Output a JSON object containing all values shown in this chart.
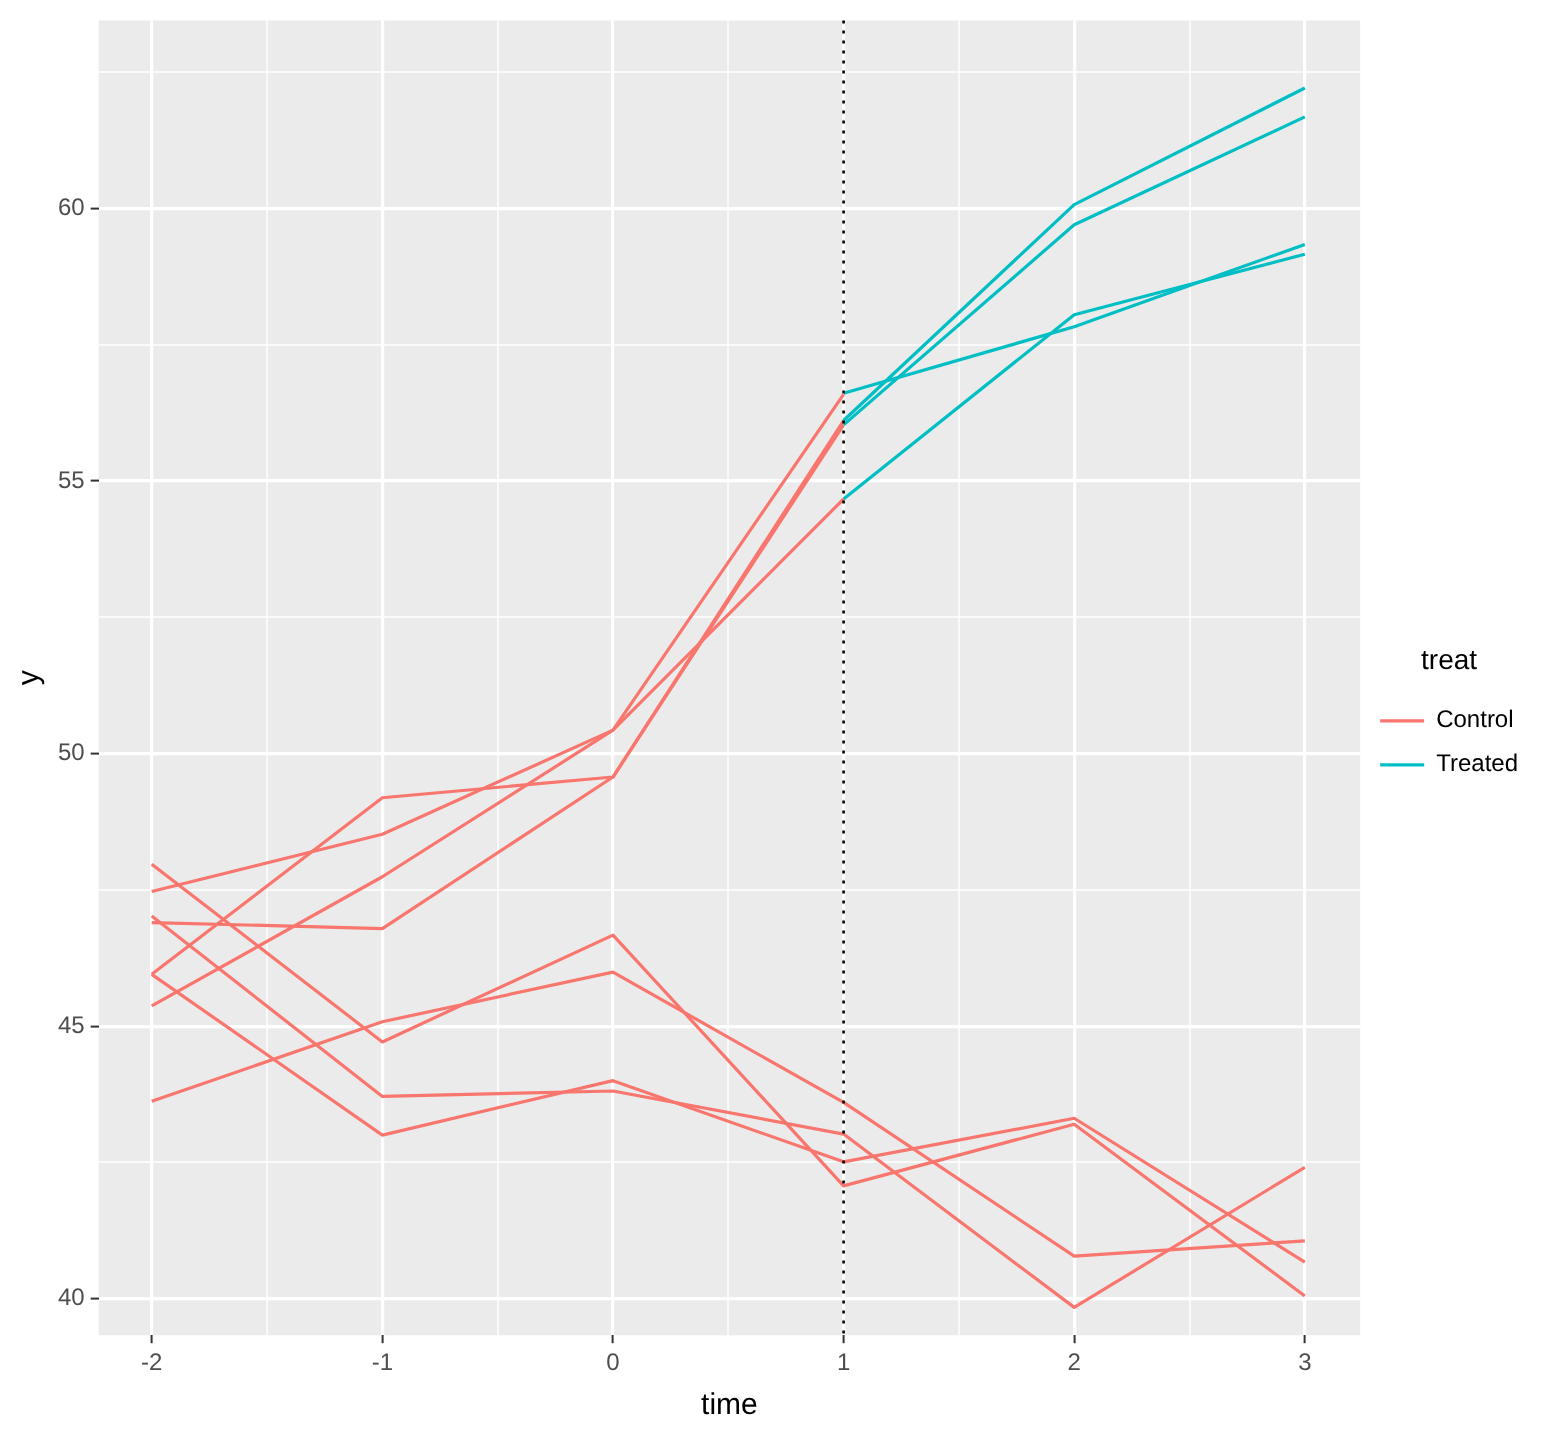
{
  "chart_data": {
    "type": "line",
    "xlabel": "time",
    "ylabel": "y",
    "legend_title": "treat",
    "legend": "right",
    "grid": true,
    "marker": "none",
    "line_style": "solid",
    "xlim": [
      -2.23,
      3.24
    ],
    "xticks": [
      -2,
      {
        "value": -1.5,
        "label": null
      },
      -1,
      {
        "value": -0.5,
        "label": null
      },
      0,
      {
        "value": 0.5,
        "label": null
      },
      1,
      {
        "value": 1.5,
        "label": null
      },
      2,
      {
        "value": 2.5,
        "label": null
      },
      3
    ],
    "ylim": [
      39.33,
      63.45
    ],
    "yticks": [
      40,
      {
        "value": 42.5,
        "label": null
      },
      45,
      {
        "value": 47.5,
        "label": null
      },
      50,
      {
        "value": 52.5,
        "label": null
      },
      55,
      {
        "value": 57.5,
        "label": null
      },
      60,
      {
        "value": 62.5,
        "label": null
      }
    ],
    "ref_lines": [
      {
        "axis": "x",
        "value": 1,
        "color": "#000000",
        "line_style": "dotted"
      }
    ],
    "series": [
      {
        "name": "Control",
        "color": "#f8766d",
        "x": [
          -2,
          -1,
          0,
          1
        ],
        "values": [
          47.47,
          48.52,
          50.43,
          56.59
        ]
      },
      {
        "color": "#f8766d",
        "x": [
          -2,
          -1,
          0,
          1
        ],
        "values": [
          45.95,
          49.19,
          49.57,
          56.11
        ]
      },
      {
        "color": "#f8766d",
        "x": [
          -2,
          -1,
          0,
          1
        ],
        "values": [
          45.37,
          47.74,
          50.43,
          54.67
        ]
      },
      {
        "color": "#f8766d",
        "x": [
          -2,
          -1,
          0,
          1
        ],
        "values": [
          46.9,
          46.79,
          49.57,
          56.03
        ]
      },
      {
        "color": "#f8766d",
        "x": [
          -2,
          -1,
          0,
          1,
          2,
          3
        ],
        "values": [
          43.62,
          45.08,
          45.99,
          43.6,
          40.78,
          41.06
        ]
      },
      {
        "color": "#f8766d",
        "x": [
          -2,
          -1,
          0,
          1,
          2,
          3
        ],
        "values": [
          47.97,
          44.71,
          46.67,
          42.07,
          43.2,
          40.05
        ]
      },
      {
        "color": "#f8766d",
        "x": [
          -2,
          -1,
          0,
          1,
          2,
          3
        ],
        "values": [
          47.02,
          43.71,
          43.81,
          43.02,
          39.84,
          42.41
        ]
      },
      {
        "color": "#f8766d",
        "x": [
          -2,
          -1,
          0,
          1,
          2,
          3
        ],
        "values": [
          45.95,
          43.0,
          44.0,
          42.51,
          43.31,
          40.67
        ]
      },
      {
        "name": "Treated",
        "color": "#00bfc4",
        "x": [
          1,
          2,
          3
        ],
        "values": [
          56.61,
          57.83,
          59.34
        ]
      },
      {
        "color": "#00bfc4",
        "x": [
          1,
          2,
          3
        ],
        "values": [
          54.67,
          58.05,
          59.16
        ]
      },
      {
        "color": "#00bfc4",
        "x": [
          1,
          2,
          3
        ],
        "values": [
          56.11,
          60.07,
          62.21
        ]
      },
      {
        "color": "#00bfc4",
        "x": [
          1,
          2,
          3
        ],
        "values": [
          56.03,
          59.7,
          61.68
        ]
      }
    ]
  }
}
